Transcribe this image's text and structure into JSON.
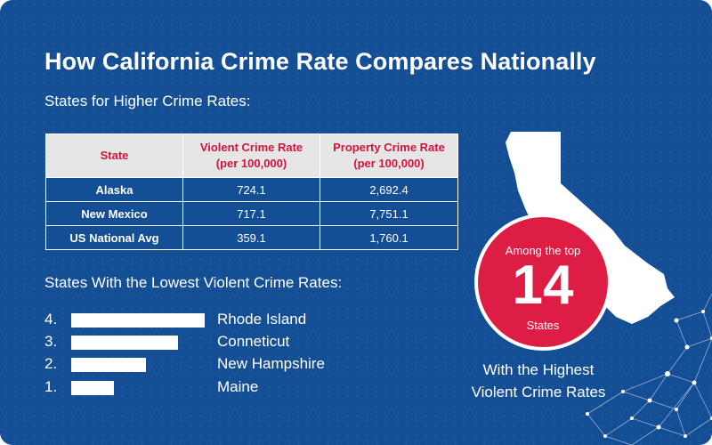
{
  "title": "How California Crime Rate Compares Nationally",
  "subtitle": "States for Higher Crime Rates:",
  "table": {
    "headers": [
      "State",
      "Violent Crime Rate (per 100,000)",
      "Property Crime Rate (per 100,000)"
    ],
    "header_lines": [
      [
        "State"
      ],
      [
        "Violent Crime Rate",
        "(per 100,000)"
      ],
      [
        "Property Crime Rate",
        "(per 100,000)"
      ]
    ],
    "rows": [
      [
        "Alaska",
        "724.1",
        "2,692.4"
      ],
      [
        "New Mexico",
        "717.1",
        "7,751.1"
      ],
      [
        "US National Avg",
        "359.1",
        "1,760.1"
      ]
    ]
  },
  "lowest": {
    "title": "States With the Lowest Violent Crime Rates:",
    "items": [
      {
        "rank": "4.",
        "name": "Rhode Island",
        "relative_value": 1.0
      },
      {
        "rank": "3.",
        "name": "Conneticut",
        "relative_value": 0.8
      },
      {
        "rank": "2.",
        "name": "New Hampshire",
        "relative_value": 0.56
      },
      {
        "rank": "1.",
        "name": "Maine",
        "relative_value": 0.32
      }
    ]
  },
  "badge": {
    "top_text": "Among the top",
    "number": "14",
    "bottom_text": "States"
  },
  "highest_caption": [
    "With the Highest",
    "Violent Crime Rates"
  ],
  "icons": {
    "map": "california-map-icon",
    "network": "network-icon"
  },
  "colors": {
    "background": "#144f96",
    "accent_red": "#dd1d44",
    "header_text": "#d4143c",
    "header_bg": "#e6e6e6"
  }
}
